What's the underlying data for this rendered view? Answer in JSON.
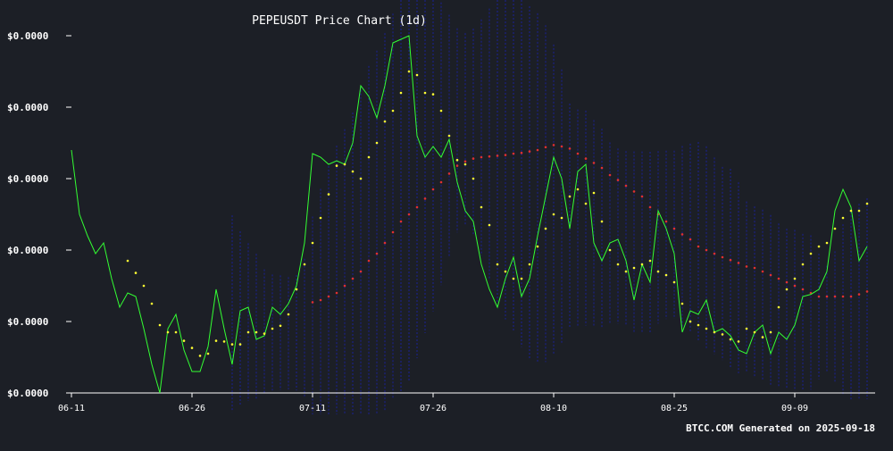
{
  "chart_data": {
    "type": "line",
    "title": "PEPEUSDT Price Chart (1d)",
    "xlabel": "",
    "ylabel": "",
    "x_tick_labels": [
      "06-11",
      "06-26",
      "07-11",
      "07-26",
      "08-10",
      "08-25",
      "09-09"
    ],
    "y_tick_labels": [
      "$0.0000",
      "$0.0000",
      "$0.0000",
      "$0.0000",
      "$0.0000",
      "$0.0000"
    ],
    "ylim": [
      0,
      5
    ],
    "xlim": [
      0,
      100
    ],
    "grid": false,
    "legend": "none",
    "footer": "BTCC.COM Generated on 2025-09-18",
    "colors": {
      "background": "#1c1f26",
      "price": "#33ff33",
      "sar": "#ffff33",
      "ma": "#e03030",
      "bands": "#1a2096",
      "axis": "#ffffff"
    },
    "series": [
      {
        "key": "price",
        "x": [
          0,
          1,
          2,
          3,
          4,
          5,
          6,
          7,
          8,
          9,
          10,
          11,
          12,
          13,
          14,
          15,
          16,
          17,
          18,
          19,
          20,
          21,
          22,
          23,
          24,
          25,
          26,
          27,
          28,
          29,
          30,
          31,
          32,
          33,
          34,
          35,
          36,
          37,
          38,
          39,
          40,
          41,
          42,
          43,
          44,
          45,
          46,
          47,
          48,
          49,
          50,
          51,
          52,
          53,
          54,
          55,
          56,
          57,
          58,
          59,
          60,
          61,
          62,
          63,
          64,
          65,
          66,
          67,
          68,
          69,
          70,
          71,
          72,
          73,
          74,
          75,
          76,
          77,
          78,
          79,
          80,
          81,
          82,
          83,
          84,
          85,
          86,
          87,
          88,
          89,
          90,
          91,
          92,
          93,
          94,
          95,
          96,
          97,
          98,
          99
        ],
        "values": [
          3.4,
          2.5,
          2.2,
          1.95,
          2.1,
          1.6,
          1.2,
          1.4,
          1.35,
          0.9,
          0.4,
          0.0,
          0.9,
          1.1,
          0.6,
          0.3,
          0.3,
          0.65,
          1.45,
          0.9,
          0.4,
          1.15,
          1.2,
          0.75,
          0.8,
          1.2,
          1.1,
          1.25,
          1.5,
          2.1,
          3.35,
          3.3,
          3.2,
          3.25,
          3.2,
          3.5,
          4.3,
          4.15,
          3.85,
          4.3,
          4.9,
          4.95,
          5.0,
          3.6,
          3.3,
          3.45,
          3.3,
          3.55,
          2.95,
          2.55,
          2.4,
          1.8,
          1.45,
          1.2,
          1.6,
          1.9,
          1.35,
          1.6,
          2.2,
          2.75,
          3.3,
          3.0,
          2.3,
          3.1,
          3.2,
          2.1,
          1.85,
          2.1,
          2.15,
          1.85,
          1.3,
          1.8,
          1.55,
          2.55,
          2.3,
          1.95,
          0.85,
          1.15,
          1.1,
          1.3,
          0.85,
          0.9,
          0.8,
          0.6,
          0.55,
          0.85,
          0.95,
          0.55,
          0.85,
          0.75,
          0.95,
          1.35,
          1.38,
          1.45,
          1.7,
          2.55,
          2.85,
          2.6,
          1.85,
          2.05
        ]
      },
      {
        "key": "sar",
        "x": [
          7,
          8,
          9,
          10,
          11,
          12,
          13,
          14,
          15,
          16,
          17,
          18,
          19,
          20,
          21,
          22,
          23,
          24,
          25,
          26,
          27,
          28,
          29,
          30,
          31,
          32,
          33,
          34,
          35,
          36,
          37,
          38,
          39,
          40,
          41,
          42,
          43,
          44,
          45,
          46,
          47,
          48,
          49,
          50,
          51,
          52,
          53,
          54,
          55,
          56,
          57,
          58,
          59,
          60,
          61,
          62,
          63,
          64,
          65,
          66,
          67,
          68,
          69,
          70,
          71,
          72,
          73,
          74,
          75,
          76,
          77,
          78,
          79,
          80,
          81,
          82,
          83,
          84,
          85,
          86,
          87,
          88,
          89,
          90,
          91,
          92,
          93,
          94,
          95,
          96,
          97,
          98,
          99
        ],
        "values": [
          1.85,
          1.68,
          1.5,
          1.25,
          0.95,
          0.85,
          0.85,
          0.73,
          0.63,
          0.52,
          0.55,
          0.73,
          0.72,
          0.68,
          0.68,
          0.85,
          0.85,
          0.83,
          0.9,
          0.94,
          1.1,
          1.45,
          1.8,
          2.1,
          2.45,
          2.78,
          3.18,
          3.2,
          3.1,
          3.0,
          3.3,
          3.5,
          3.8,
          3.95,
          4.2,
          4.5,
          4.45,
          4.2,
          4.18,
          3.95,
          3.6,
          3.26,
          3.2,
          3.0,
          2.6,
          2.35,
          1.8,
          1.7,
          1.6,
          1.6,
          1.8,
          2.05,
          2.3,
          2.5,
          2.45,
          2.75,
          2.85,
          2.65,
          2.8,
          2.4,
          2.0,
          1.8,
          1.7,
          1.75,
          1.8,
          1.85,
          1.7,
          1.65,
          1.55,
          1.25,
          1.0,
          0.95,
          0.9,
          0.85,
          0.82,
          0.75,
          0.72,
          0.9,
          0.85,
          0.78,
          0.85,
          1.2,
          1.45,
          1.6,
          1.8,
          1.95,
          2.05,
          2.1,
          2.3,
          2.45,
          2.55,
          2.55,
          2.65
        ]
      },
      {
        "key": "ma",
        "x": [
          30,
          31,
          32,
          33,
          34,
          35,
          36,
          37,
          38,
          39,
          40,
          41,
          42,
          43,
          44,
          45,
          46,
          47,
          48,
          49,
          50,
          51,
          52,
          53,
          54,
          55,
          56,
          57,
          58,
          59,
          60,
          61,
          62,
          63,
          64,
          65,
          66,
          67,
          68,
          69,
          70,
          71,
          72,
          73,
          74,
          75,
          76,
          77,
          78,
          79,
          80,
          81,
          82,
          83,
          84,
          85,
          86,
          87,
          88,
          89,
          90,
          91,
          92,
          93,
          94,
          95,
          96,
          97,
          98,
          99
        ],
        "values": [
          1.27,
          1.3,
          1.35,
          1.4,
          1.5,
          1.6,
          1.7,
          1.85,
          1.95,
          2.1,
          2.25,
          2.4,
          2.5,
          2.6,
          2.72,
          2.85,
          2.95,
          3.07,
          3.18,
          3.24,
          3.28,
          3.3,
          3.31,
          3.32,
          3.33,
          3.35,
          3.36,
          3.38,
          3.4,
          3.44,
          3.47,
          3.45,
          3.42,
          3.35,
          3.28,
          3.22,
          3.15,
          3.05,
          2.98,
          2.9,
          2.82,
          2.75,
          2.6,
          2.5,
          2.4,
          2.3,
          2.22,
          2.15,
          2.05,
          2.0,
          1.95,
          1.9,
          1.86,
          1.82,
          1.77,
          1.75,
          1.7,
          1.65,
          1.6,
          1.55,
          1.5,
          1.45,
          1.4,
          1.35,
          1.35,
          1.35,
          1.35,
          1.35,
          1.38,
          1.42
        ]
      }
    ]
  }
}
